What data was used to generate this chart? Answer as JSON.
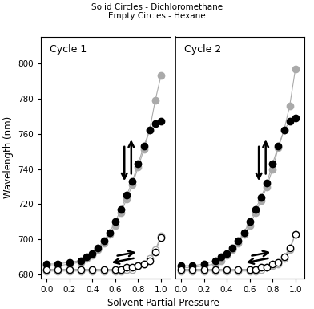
{
  "title_line1": "Solid Circles - Dichloromethane",
  "title_line2": "Empty Circles - Hexane",
  "xlabel": "Solvent Partial Pressure",
  "ylabel": "Wavelength (nm)",
  "ylim": [
    678,
    815
  ],
  "xlim": [
    -0.05,
    1.08
  ],
  "yticks": [
    680,
    700,
    720,
    740,
    760,
    780,
    800
  ],
  "xticks": [
    0.0,
    0.2,
    0.4,
    0.6,
    0.8,
    1.0
  ],
  "cycle1_dcm_inc_x": [
    0.0,
    0.1,
    0.2,
    0.3,
    0.35,
    0.4,
    0.45,
    0.5,
    0.55,
    0.6,
    0.65,
    0.7,
    0.75,
    0.8,
    0.85,
    0.9,
    0.95,
    1.0
  ],
  "cycle1_dcm_inc_y": [
    686,
    686,
    687,
    688,
    690,
    692,
    695,
    699,
    704,
    710,
    717,
    725,
    733,
    743,
    753,
    762,
    766,
    767
  ],
  "cycle1_dcm_dec_x": [
    0.0,
    0.1,
    0.2,
    0.3,
    0.35,
    0.4,
    0.45,
    0.5,
    0.55,
    0.6,
    0.65,
    0.7,
    0.75,
    0.8,
    0.85,
    0.9,
    0.95,
    1.0
  ],
  "cycle1_dcm_dec_y": [
    685,
    685,
    686,
    687,
    689,
    691,
    694,
    698,
    703,
    708,
    715,
    723,
    731,
    741,
    751,
    762,
    779,
    793
  ],
  "cycle1_hex_inc_x": [
    0.0,
    0.1,
    0.2,
    0.3,
    0.4,
    0.5,
    0.6,
    0.65,
    0.7,
    0.75,
    0.8,
    0.85,
    0.9,
    0.95,
    1.0
  ],
  "cycle1_hex_inc_y": [
    683,
    683,
    683,
    683,
    683,
    683,
    683,
    683,
    684,
    684,
    685,
    686,
    688,
    693,
    701
  ],
  "cycle1_hex_dec_x": [
    0.0,
    0.1,
    0.2,
    0.3,
    0.4,
    0.5,
    0.6,
    0.65,
    0.7,
    0.75,
    0.8,
    0.85,
    0.9,
    0.95,
    1.0
  ],
  "cycle1_hex_dec_y": [
    682,
    682,
    682,
    682,
    682,
    682,
    682,
    682,
    683,
    683,
    685,
    686,
    689,
    694,
    702
  ],
  "cycle2_dcm_inc_x": [
    0.0,
    0.1,
    0.2,
    0.3,
    0.35,
    0.4,
    0.45,
    0.5,
    0.55,
    0.6,
    0.65,
    0.7,
    0.75,
    0.8,
    0.85,
    0.9,
    0.95,
    1.0
  ],
  "cycle2_dcm_inc_y": [
    685,
    685,
    686,
    688,
    690,
    692,
    695,
    699,
    704,
    710,
    717,
    724,
    732,
    743,
    753,
    762,
    767,
    769
  ],
  "cycle2_dcm_dec_x": [
    0.0,
    0.1,
    0.2,
    0.3,
    0.35,
    0.4,
    0.45,
    0.5,
    0.55,
    0.6,
    0.65,
    0.7,
    0.75,
    0.8,
    0.85,
    0.9,
    0.95,
    1.0
  ],
  "cycle2_dcm_dec_y": [
    684,
    684,
    685,
    686,
    688,
    691,
    694,
    698,
    703,
    708,
    715,
    722,
    730,
    740,
    752,
    762,
    776,
    797
  ],
  "cycle2_hex_inc_x": [
    0.0,
    0.1,
    0.2,
    0.3,
    0.4,
    0.5,
    0.6,
    0.65,
    0.7,
    0.75,
    0.8,
    0.85,
    0.9,
    0.95,
    1.0
  ],
  "cycle2_hex_inc_y": [
    683,
    683,
    683,
    683,
    683,
    683,
    683,
    683,
    684,
    684,
    686,
    687,
    690,
    695,
    703
  ],
  "cycle2_hex_dec_x": [
    0.0,
    0.1,
    0.2,
    0.3,
    0.4,
    0.5,
    0.6,
    0.65,
    0.7,
    0.75,
    0.8,
    0.85,
    0.9,
    0.95,
    1.0
  ],
  "cycle2_hex_dec_y": [
    682,
    682,
    682,
    682,
    682,
    682,
    682,
    682,
    683,
    684,
    685,
    686,
    689,
    694,
    703
  ],
  "line_color_black": "#000000",
  "line_color_gray": "#aaaaaa",
  "marker_size": 6,
  "line_width": 0.8,
  "figsize": [
    3.92,
    3.85
  ],
  "dpi": 100
}
